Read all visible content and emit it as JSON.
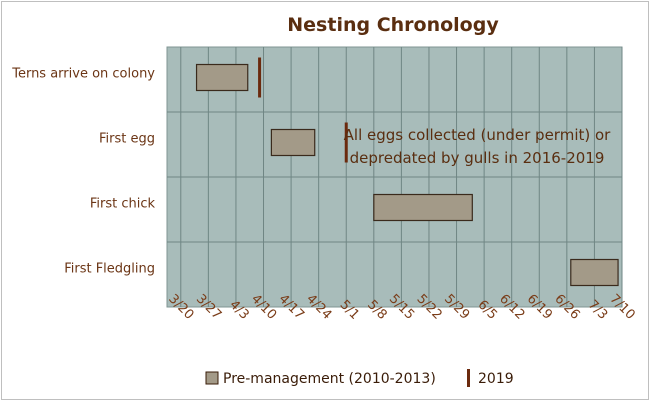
{
  "chart_data": {
    "type": "gantt",
    "title": "Nesting Chronology",
    "x_ticks": [
      "3/20",
      "3/27",
      "4/3",
      "4/10",
      "4/17",
      "4/24",
      "5/1",
      "5/8",
      "5/15",
      "5/22",
      "5/29",
      "6/5",
      "6/12",
      "6/19",
      "6/26",
      "7/3",
      "7/10"
    ],
    "categories": [
      "Terns arrive on colony",
      "First egg",
      "First chick",
      "First Fledgling"
    ],
    "series": [
      {
        "name": "Pre-management (2010-2013)",
        "color": "#a39a88",
        "bars": [
          {
            "category": "Terns arrive on colony",
            "start": "3/24",
            "end": "4/6"
          },
          {
            "category": "First egg",
            "start": "4/12",
            "end": "4/23"
          },
          {
            "category": "First chick",
            "start": "5/8",
            "end": "6/2"
          },
          {
            "category": "First Fledgling",
            "start": "6/27",
            "end": "7/9"
          }
        ]
      },
      {
        "name": "2019",
        "color": "#6b2a0e",
        "markers": [
          {
            "category": "Terns arrive on colony",
            "date": "4/9"
          },
          {
            "category": "First egg",
            "date": "5/1"
          }
        ]
      }
    ],
    "annotation": {
      "line1": "All eggs collected (under permit) or",
      "line2": "depredated by gulls in 2016-2019"
    },
    "plot_background": "#a8bcba",
    "grid": true,
    "legend_position": "bottom"
  }
}
